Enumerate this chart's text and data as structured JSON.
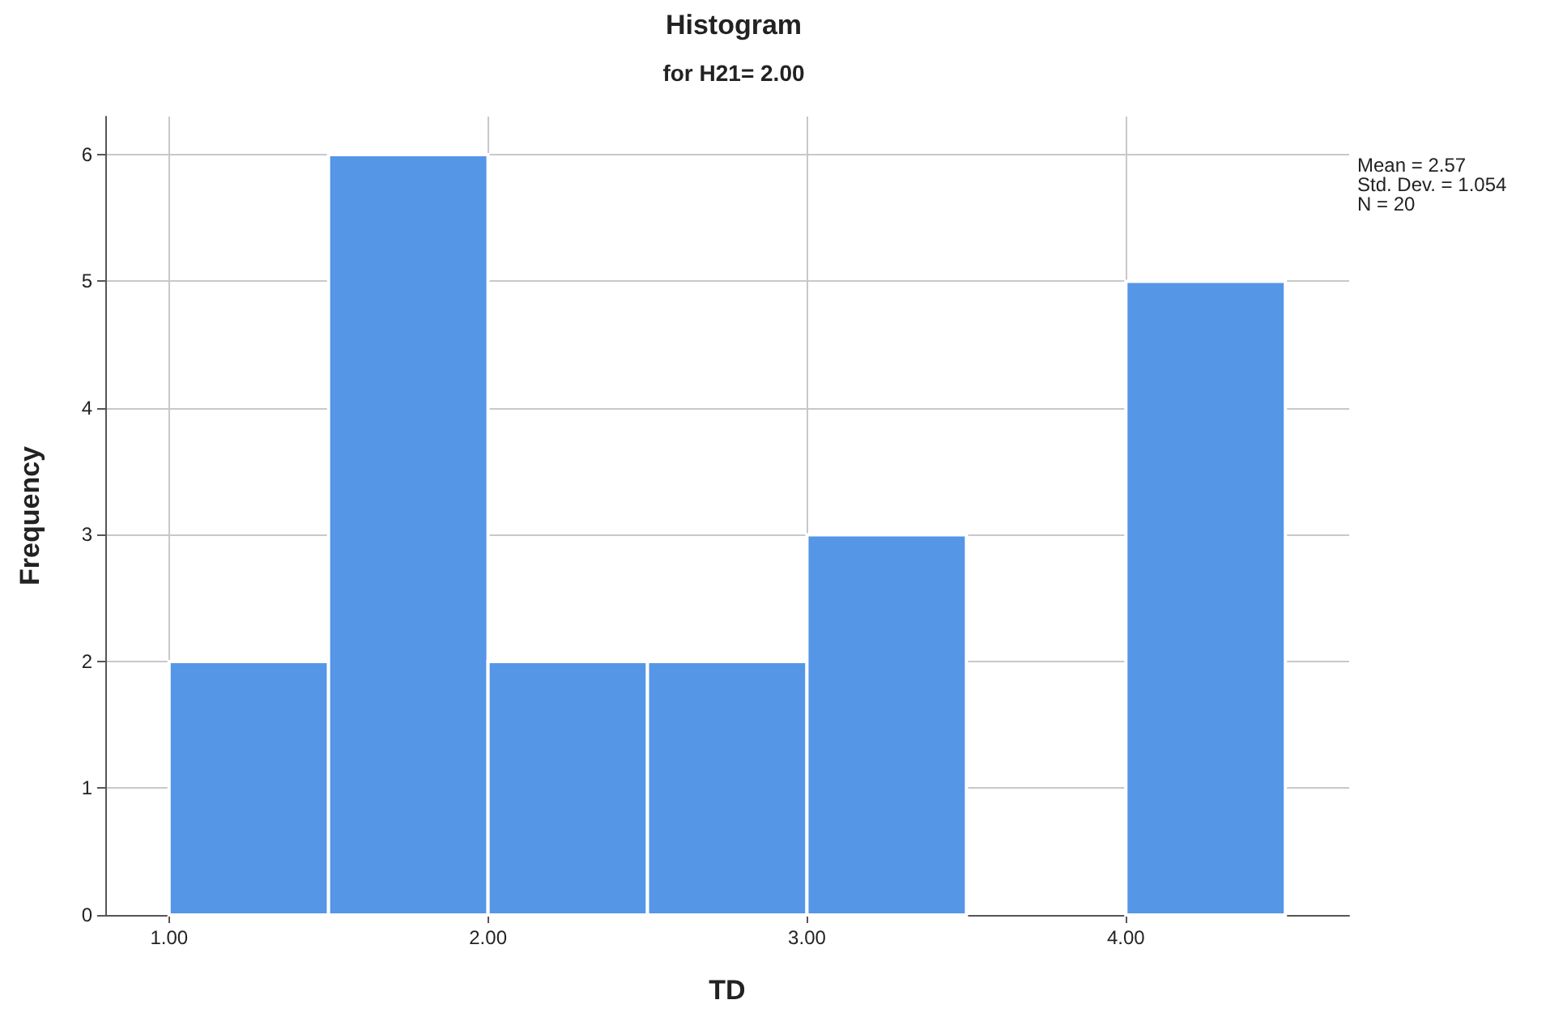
{
  "chart_data": {
    "type": "histogram",
    "title": "Histogram",
    "subtitle": "for H21= 2.00",
    "xlabel": "TD",
    "ylabel": "Frequency",
    "bins": [
      1.0,
      1.5,
      2.0,
      2.5,
      3.0,
      3.5,
      4.0,
      4.5
    ],
    "values": [
      2,
      6,
      2,
      2,
      3,
      0,
      5
    ],
    "color": "#5596e6",
    "xlim": [
      0.8,
      4.7
    ],
    "xticks": [
      {
        "value": 1,
        "label": "1.00"
      },
      {
        "value": 2,
        "label": "2.00"
      },
      {
        "value": 3,
        "label": "3.00"
      },
      {
        "value": 4,
        "label": "4.00"
      }
    ],
    "ylim": [
      0,
      6.3
    ],
    "yticks": [
      0,
      1,
      2,
      3,
      4,
      5,
      6
    ],
    "grid": true,
    "annotations": [
      "Mean = 2.57",
      "Std. Dev. = 1.054",
      "N = 20"
    ]
  }
}
